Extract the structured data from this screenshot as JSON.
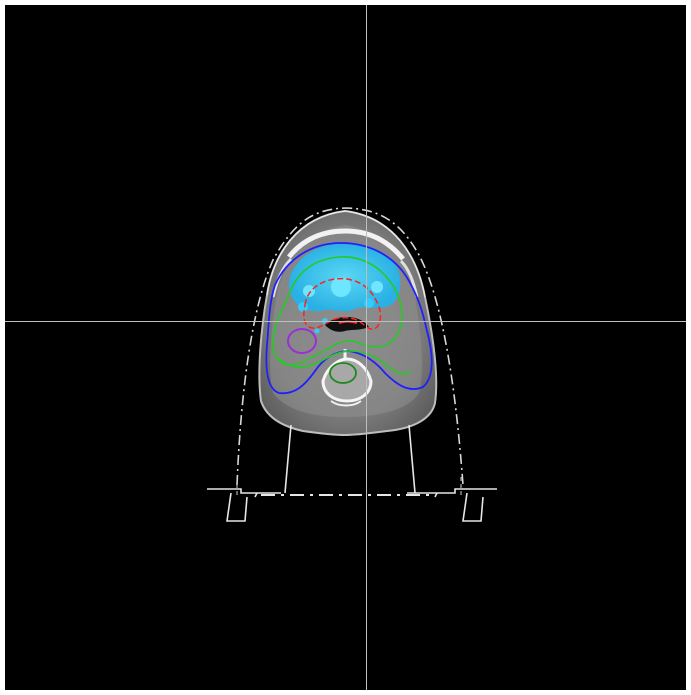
{
  "viewer": {
    "background_color": "#000000",
    "frame_color": "#ffffff",
    "crosshair_color": "#bebebe"
  },
  "contours": [
    {
      "name": "body-outline",
      "color": "#ffffff"
    },
    {
      "name": "outer-contour",
      "color": "#2020ff"
    },
    {
      "name": "middle-contour",
      "color": "#22cc22"
    },
    {
      "name": "inner-contour",
      "color": "#ff2020"
    },
    {
      "name": "left-node-contour",
      "color": "#9a2fd6"
    },
    {
      "name": "spinal-contour",
      "color": "#1a8a1a"
    },
    {
      "name": "dose-region",
      "color": "#33ccff"
    }
  ]
}
